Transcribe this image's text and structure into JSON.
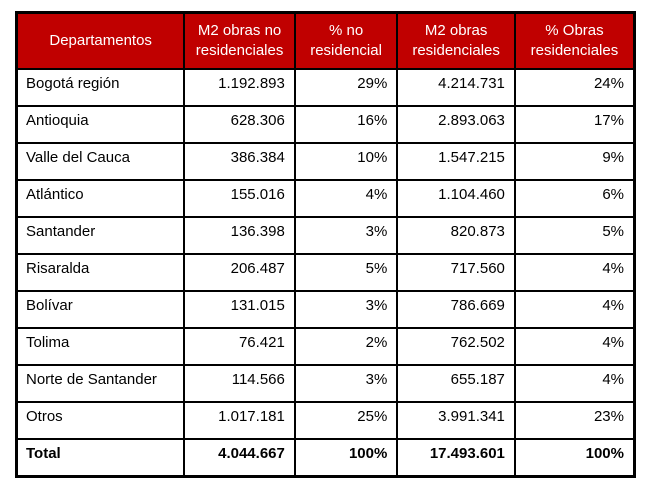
{
  "chart_data": {
    "type": "table",
    "columns": [
      "Departamentos",
      "M2 obras no residenciales",
      "% no residencial",
      "M2 obras residenciales",
      "% Obras residenciales"
    ],
    "rows": [
      [
        "Bogotá región",
        "1.192.893",
        "29%",
        "4.214.731",
        "24%"
      ],
      [
        "Antioquia",
        "628.306",
        "16%",
        "2.893.063",
        "17%"
      ],
      [
        "Valle del Cauca",
        "386.384",
        "10%",
        "1.547.215",
        "9%"
      ],
      [
        "Atlántico",
        "155.016",
        "4%",
        "1.104.460",
        "6%"
      ],
      [
        "Santander",
        "136.398",
        "3%",
        "820.873",
        "5%"
      ],
      [
        "Risaralda",
        "206.487",
        "5%",
        "717.560",
        "4%"
      ],
      [
        "Bolívar",
        "131.015",
        "3%",
        "786.669",
        "4%"
      ],
      [
        "Tolima",
        "76.421",
        "2%",
        "762.502",
        "4%"
      ],
      [
        "Norte de Santander",
        "114.566",
        "3%",
        "655.187",
        "4%"
      ],
      [
        "Otros",
        "1.017.181",
        "25%",
        "3.991.341",
        "23%"
      ],
      [
        "Total",
        "4.044.667",
        "100%",
        "17.493.601",
        "100%"
      ]
    ],
    "total_row_index": 10,
    "layout": {
      "column_alignments": [
        "left",
        "right",
        "right",
        "right",
        "right"
      ],
      "grid": "all-borders",
      "header_position": "top"
    }
  },
  "colors": {
    "header_bg": "#C00000",
    "header_text": "#FFFFFF",
    "body_bg": "#FFFFFF",
    "body_text": "#000000",
    "border": "#000000"
  }
}
